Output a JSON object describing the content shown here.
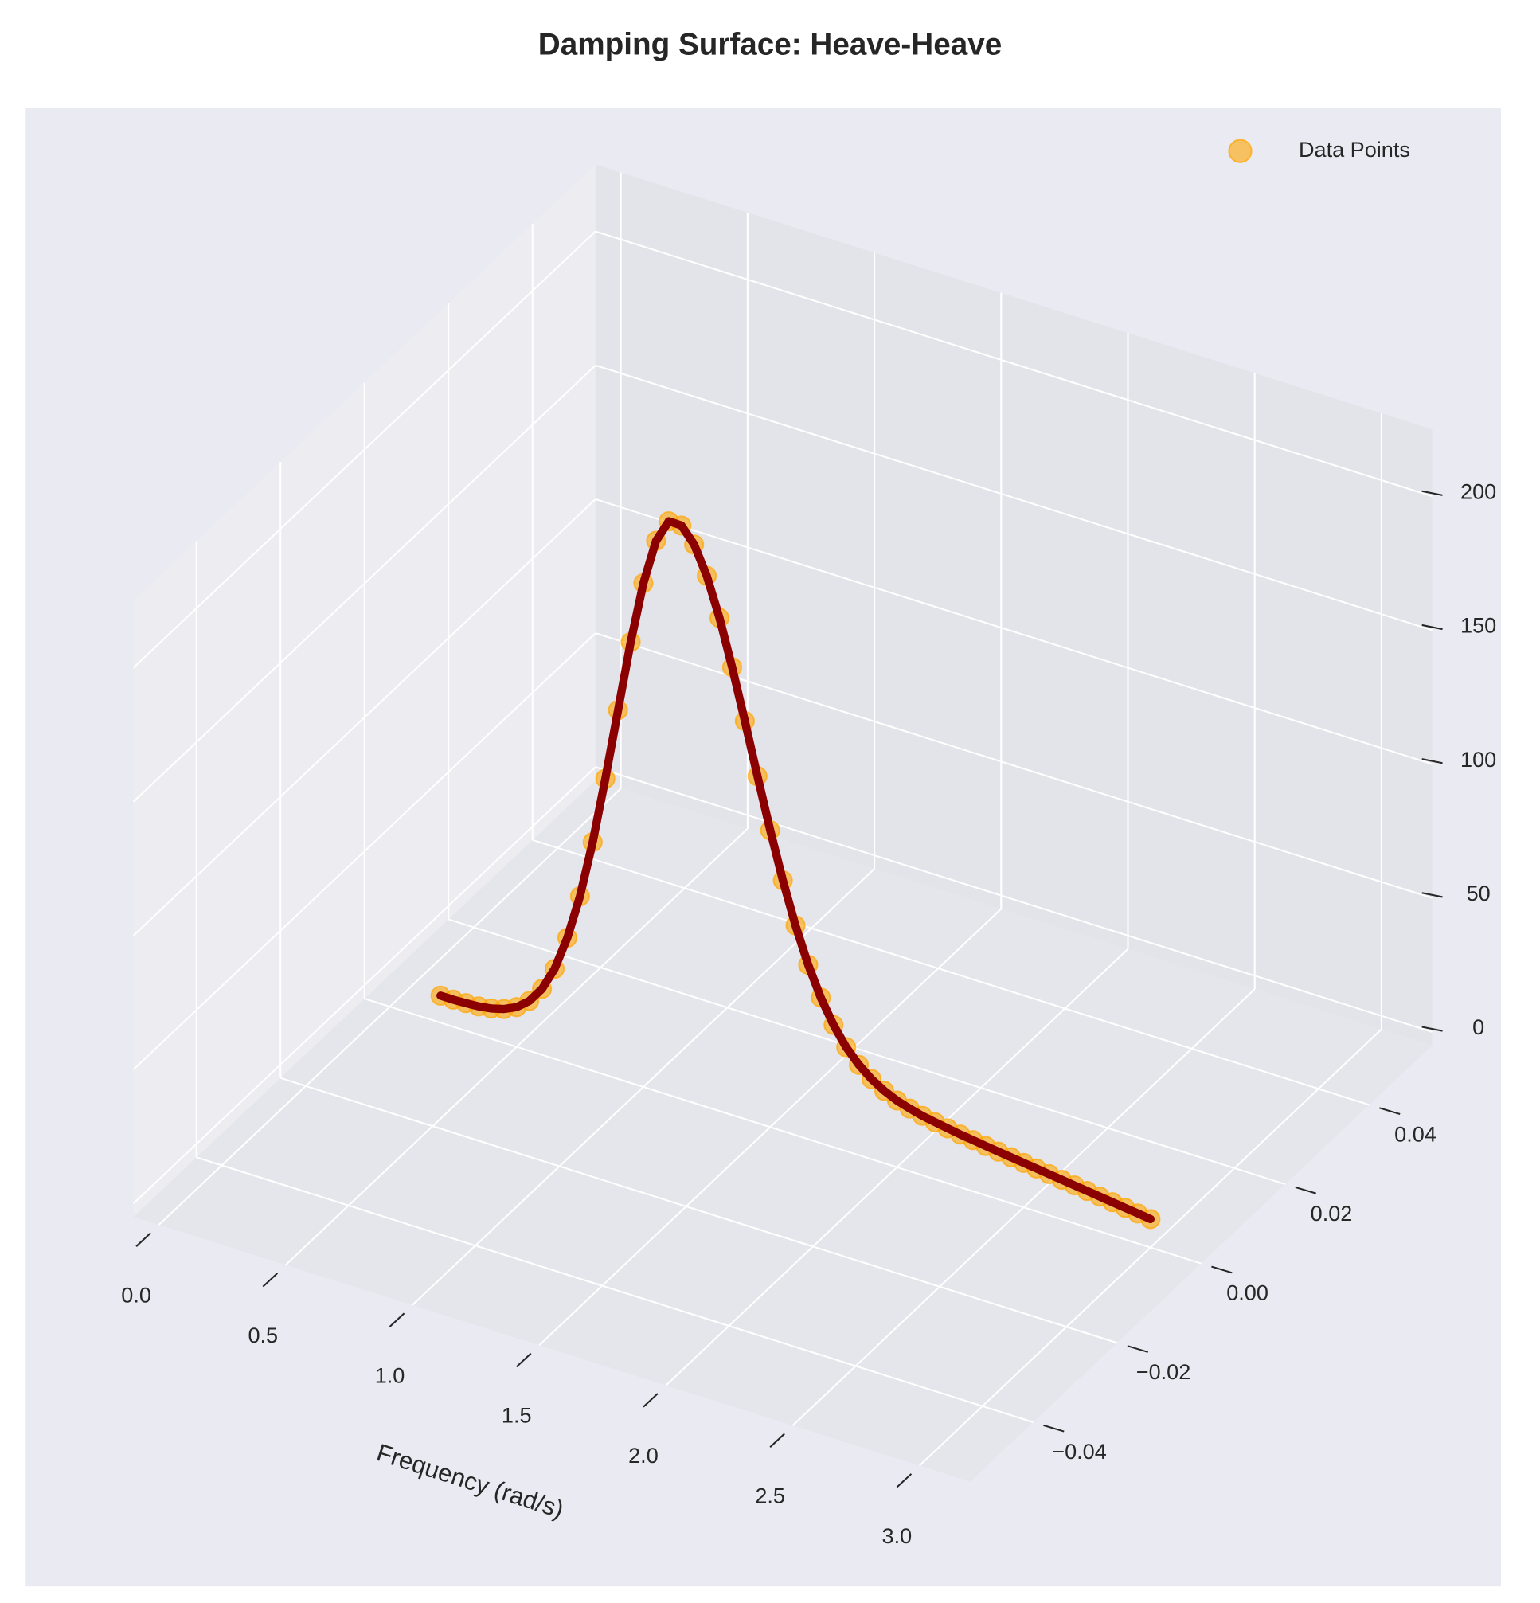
{
  "chart_data": {
    "type": "line3d",
    "title": "Damping Surface: Heave-Heave",
    "xlabel": "Frequency (rad/s)",
    "x": [
      0.2,
      0.25,
      0.3,
      0.35,
      0.4,
      0.45,
      0.5,
      0.55,
      0.6,
      0.65,
      0.7,
      0.75,
      0.8,
      0.85,
      0.9,
      0.95,
      1.0,
      1.05,
      1.1,
      1.15,
      1.2,
      1.25,
      1.3,
      1.35,
      1.4,
      1.45,
      1.5,
      1.55,
      1.6,
      1.65,
      1.7,
      1.75,
      1.8,
      1.85,
      1.9,
      1.95,
      2.0,
      2.05,
      2.1,
      2.15,
      2.2,
      2.25,
      2.3,
      2.35,
      2.4,
      2.45,
      2.5,
      2.55,
      2.6,
      2.65,
      2.7,
      2.75,
      2.8,
      2.85,
      2.9,
      2.95,
      3.0
    ],
    "y": [
      0,
      0,
      0,
      0,
      0,
      0,
      0,
      0,
      0,
      0,
      0,
      0,
      0,
      0,
      0,
      0,
      0,
      0,
      0,
      0,
      0,
      0,
      0,
      0,
      0,
      0,
      0,
      0,
      0,
      0,
      0,
      0,
      0,
      0,
      0,
      0,
      0,
      0,
      0,
      0,
      0,
      0,
      0,
      0,
      0,
      0,
      0,
      0,
      0,
      0,
      0,
      0,
      0,
      0,
      0,
      0,
      0
    ],
    "z": [
      5.1,
      5.1,
      5.3,
      5.6,
      6.3,
      7.6,
      9.8,
      13.6,
      19.6,
      28.6,
      41.7,
      58.7,
      80.4,
      105.6,
      132.7,
      159.6,
      183.1,
      200.4,
      209.2,
      209.1,
      203.5,
      193.3,
      179.1,
      162.2,
      143.6,
      124.5,
      105.8,
      88.6,
      73.3,
      60.1,
      49.3,
      40.6,
      33.8,
      28.7,
      24.9,
      22.0,
      19.9,
      18.4,
      17.2,
      16.3,
      15.5,
      14.7,
      14.1,
      13.4,
      12.8,
      12.2,
      11.6,
      11.0,
      10.4,
      9.8,
      9.2,
      8.6,
      8.0,
      7.4,
      6.8,
      6.2,
      5.6
    ],
    "series": [
      {
        "name": "Data Points",
        "kind": "scatter",
        "color": "#ffa500"
      },
      {
        "kind": "line",
        "color": "#8b0000"
      }
    ],
    "xlim": [
      -0.1,
      3.2
    ],
    "ylim": [
      -0.055,
      0.055
    ],
    "zlim": [
      -5,
      225
    ],
    "xticks": [
      {
        "value": 0,
        "label": "0.0"
      },
      {
        "value": 0.5,
        "label": "0.5"
      },
      {
        "value": 1,
        "label": "1.0"
      },
      {
        "value": 1.5,
        "label": "1.5"
      },
      {
        "value": 2,
        "label": "2.0"
      },
      {
        "value": 2.5,
        "label": "2.5"
      },
      {
        "value": 3,
        "label": "3.0"
      }
    ],
    "yticks": [
      {
        "value": -0.04,
        "label": "−0.04"
      },
      {
        "value": -0.02,
        "label": "−0.02"
      },
      {
        "value": 0,
        "label": "0.00"
      },
      {
        "value": 0.02,
        "label": "0.02"
      },
      {
        "value": 0.04,
        "label": "0.04"
      }
    ],
    "zticks": [
      0,
      50,
      100,
      150,
      200
    ],
    "grid": true,
    "legend_loc": "upper right"
  }
}
